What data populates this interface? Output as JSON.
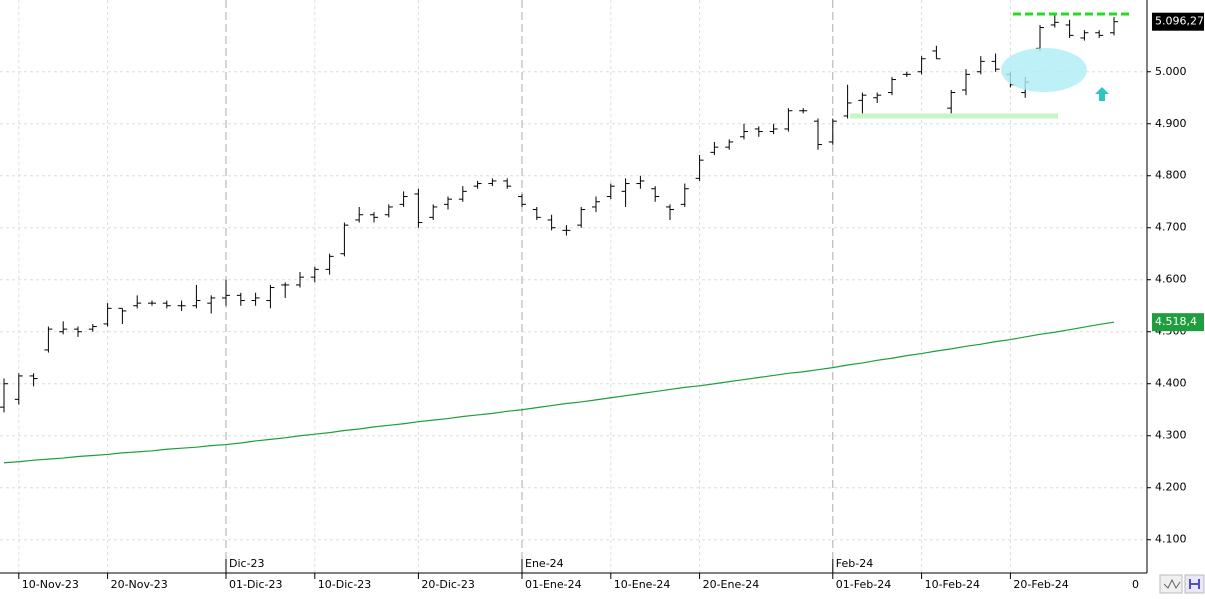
{
  "chart_data": {
    "type": "ohlc",
    "categories": [
      null,
      "10-Nov-23",
      null,
      null,
      null,
      null,
      null,
      "20-Nov-23",
      null,
      null,
      null,
      null,
      null,
      null,
      null,
      "01-Dic-23",
      null,
      null,
      null,
      null,
      null,
      "10-Dic-23",
      null,
      null,
      null,
      null,
      null,
      null,
      "20-Dic-23",
      null,
      null,
      null,
      null,
      null,
      null,
      "01-Ene-24",
      null,
      null,
      null,
      null,
      null,
      "10-Ene-24",
      null,
      null,
      null,
      null,
      null,
      "20-Ene-24",
      null,
      null,
      null,
      null,
      null,
      null,
      null,
      null,
      "01-Feb-24",
      null,
      null,
      null,
      null,
      null,
      "10-Feb-24",
      null,
      null,
      null,
      null,
      null,
      "20-Feb-24",
      null,
      null,
      null,
      null,
      null,
      null,
      null
    ],
    "month_labels": [
      null,
      null,
      null,
      null,
      null,
      null,
      null,
      null,
      null,
      null,
      null,
      null,
      null,
      null,
      null,
      "Dic-23",
      null,
      null,
      null,
      null,
      null,
      null,
      null,
      null,
      null,
      null,
      null,
      null,
      null,
      null,
      null,
      null,
      null,
      null,
      null,
      "Ene-24",
      null,
      null,
      null,
      null,
      null,
      null,
      null,
      null,
      null,
      null,
      null,
      null,
      null,
      null,
      null,
      null,
      null,
      null,
      null,
      null,
      "Feb-24",
      null,
      null,
      null,
      null,
      null,
      null,
      null,
      null,
      null,
      null,
      null,
      null,
      null,
      null,
      null,
      null,
      null,
      null,
      null
    ],
    "open": [
      4355,
      4370,
      4415,
      4465,
      4500,
      4505,
      4505,
      4515,
      4545,
      4550,
      4555,
      4555,
      4550,
      4550,
      4555,
      4565,
      4570,
      4560,
      4560,
      4590,
      4590,
      4605,
      4620,
      4650,
      4715,
      4725,
      4725,
      4745,
      4765,
      4720,
      4745,
      4755,
      4780,
      4785,
      4790,
      4760,
      4735,
      4715,
      4695,
      4705,
      4740,
      4760,
      4770,
      4785,
      4775,
      4740,
      4745,
      4795,
      4845,
      4855,
      4875,
      4890,
      4885,
      4890,
      4925,
      4905,
      4865,
      4915,
      4945,
      4950,
      4960,
      4995,
      5000,
      5040,
      4930,
      4965,
      5000,
      5020,
      4995,
      4960,
      5045,
      5090,
      5090,
      5065,
      5075,
      5075
    ],
    "high": [
      4410,
      4420,
      4420,
      4510,
      4520,
      4510,
      4515,
      4555,
      4545,
      4570,
      4560,
      4560,
      4560,
      4590,
      4570,
      4600,
      4575,
      4575,
      4590,
      4595,
      4615,
      4625,
      4650,
      4710,
      4740,
      4730,
      4745,
      4770,
      4775,
      4745,
      4760,
      4780,
      4790,
      4795,
      4795,
      4765,
      4740,
      4725,
      4705,
      4740,
      4760,
      4785,
      4795,
      4800,
      4780,
      4745,
      4785,
      4840,
      4865,
      4870,
      4900,
      4895,
      4900,
      4930,
      4930,
      4910,
      4910,
      4975,
      4960,
      4960,
      4990,
      5000,
      5030,
      5050,
      4965,
      5005,
      5030,
      5035,
      5000,
      4990,
      5090,
      5110,
      5100,
      5080,
      5080,
      5105
    ],
    "low": [
      4345,
      4360,
      4395,
      4460,
      4495,
      4490,
      4500,
      4510,
      4515,
      4545,
      4550,
      4545,
      4540,
      4545,
      4535,
      4550,
      4550,
      4550,
      4545,
      4565,
      4585,
      4595,
      4610,
      4645,
      4710,
      4710,
      4720,
      4740,
      4700,
      4715,
      4735,
      4750,
      4775,
      4780,
      4775,
      4740,
      4715,
      4695,
      4685,
      4700,
      4730,
      4755,
      4740,
      4775,
      4750,
      4715,
      4740,
      4790,
      4840,
      4850,
      4870,
      4875,
      4880,
      4885,
      4920,
      4850,
      4860,
      4910,
      4920,
      4940,
      4955,
      4990,
      4995,
      5025,
      4920,
      4955,
      4995,
      5000,
      4970,
      4950,
      5040,
      5085,
      5065,
      5060,
      5065,
      5070
    ],
    "close": [
      4400,
      4415,
      4410,
      4505,
      4505,
      4500,
      4510,
      4545,
      4540,
      4555,
      4555,
      4550,
      4550,
      4560,
      4565,
      4570,
      4560,
      4565,
      4585,
      4590,
      4605,
      4620,
      4645,
      4705,
      4725,
      4720,
      4740,
      4760,
      4710,
      4740,
      4755,
      4770,
      4785,
      4790,
      4780,
      4745,
      4720,
      4700,
      4695,
      4735,
      4750,
      4780,
      4785,
      4790,
      4760,
      4735,
      4775,
      4830,
      4855,
      4865,
      4885,
      4885,
      4890,
      4925,
      4925,
      4860,
      4905,
      4940,
      4955,
      4955,
      4985,
      4995,
      5025,
      5025,
      4960,
      4995,
      5020,
      5005,
      4975,
      4980,
      5085,
      5095,
      5070,
      5075,
      5070,
      5096.27
    ],
    "bar_color": "#000000",
    "moving_average": {
      "color": "#1e9e3c",
      "values": [
        4248,
        4250,
        4253,
        4255,
        4257,
        4260,
        4262,
        4264,
        4267,
        4269,
        4271,
        4274,
        4276,
        4278,
        4281,
        4283,
        4286,
        4290,
        4293,
        4296,
        4300,
        4303,
        4306,
        4310,
        4313,
        4317,
        4320,
        4323,
        4327,
        4330,
        4333,
        4337,
        4340,
        4343,
        4347,
        4350,
        4354,
        4358,
        4362,
        4365,
        4369,
        4373,
        4377,
        4381,
        4385,
        4389,
        4393,
        4396,
        4400,
        4404,
        4408,
        4412,
        4416,
        4420,
        4423,
        4427,
        4431,
        4436,
        4440,
        4445,
        4449,
        4454,
        4458,
        4463,
        4467,
        4472,
        4476,
        4481,
        4485,
        4490,
        4495,
        4499,
        4504,
        4509,
        4514,
        4518.4
      ]
    },
    "last_price": {
      "value": 5096.27,
      "label": "5.096,27"
    },
    "ma_price": {
      "value": 4518.4,
      "label": "4.518,4"
    },
    "ylim": [
      4036,
      5138
    ],
    "yticks": [
      {
        "value": 4100,
        "label": "4.100"
      },
      {
        "value": 4200,
        "label": "4.200"
      },
      {
        "value": 4300,
        "label": "4.300"
      },
      {
        "value": 4400,
        "label": "4.400"
      },
      {
        "value": 4500,
        "label": "4.500"
      },
      {
        "value": 4600,
        "label": "4.600"
      },
      {
        "value": 4700,
        "label": "4.700"
      },
      {
        "value": 4800,
        "label": "4.800"
      },
      {
        "value": 4900,
        "label": "4.900"
      },
      {
        "value": 5000,
        "label": "5.000"
      }
    ],
    "x_axis_end_label": "0",
    "grid": true
  }
}
